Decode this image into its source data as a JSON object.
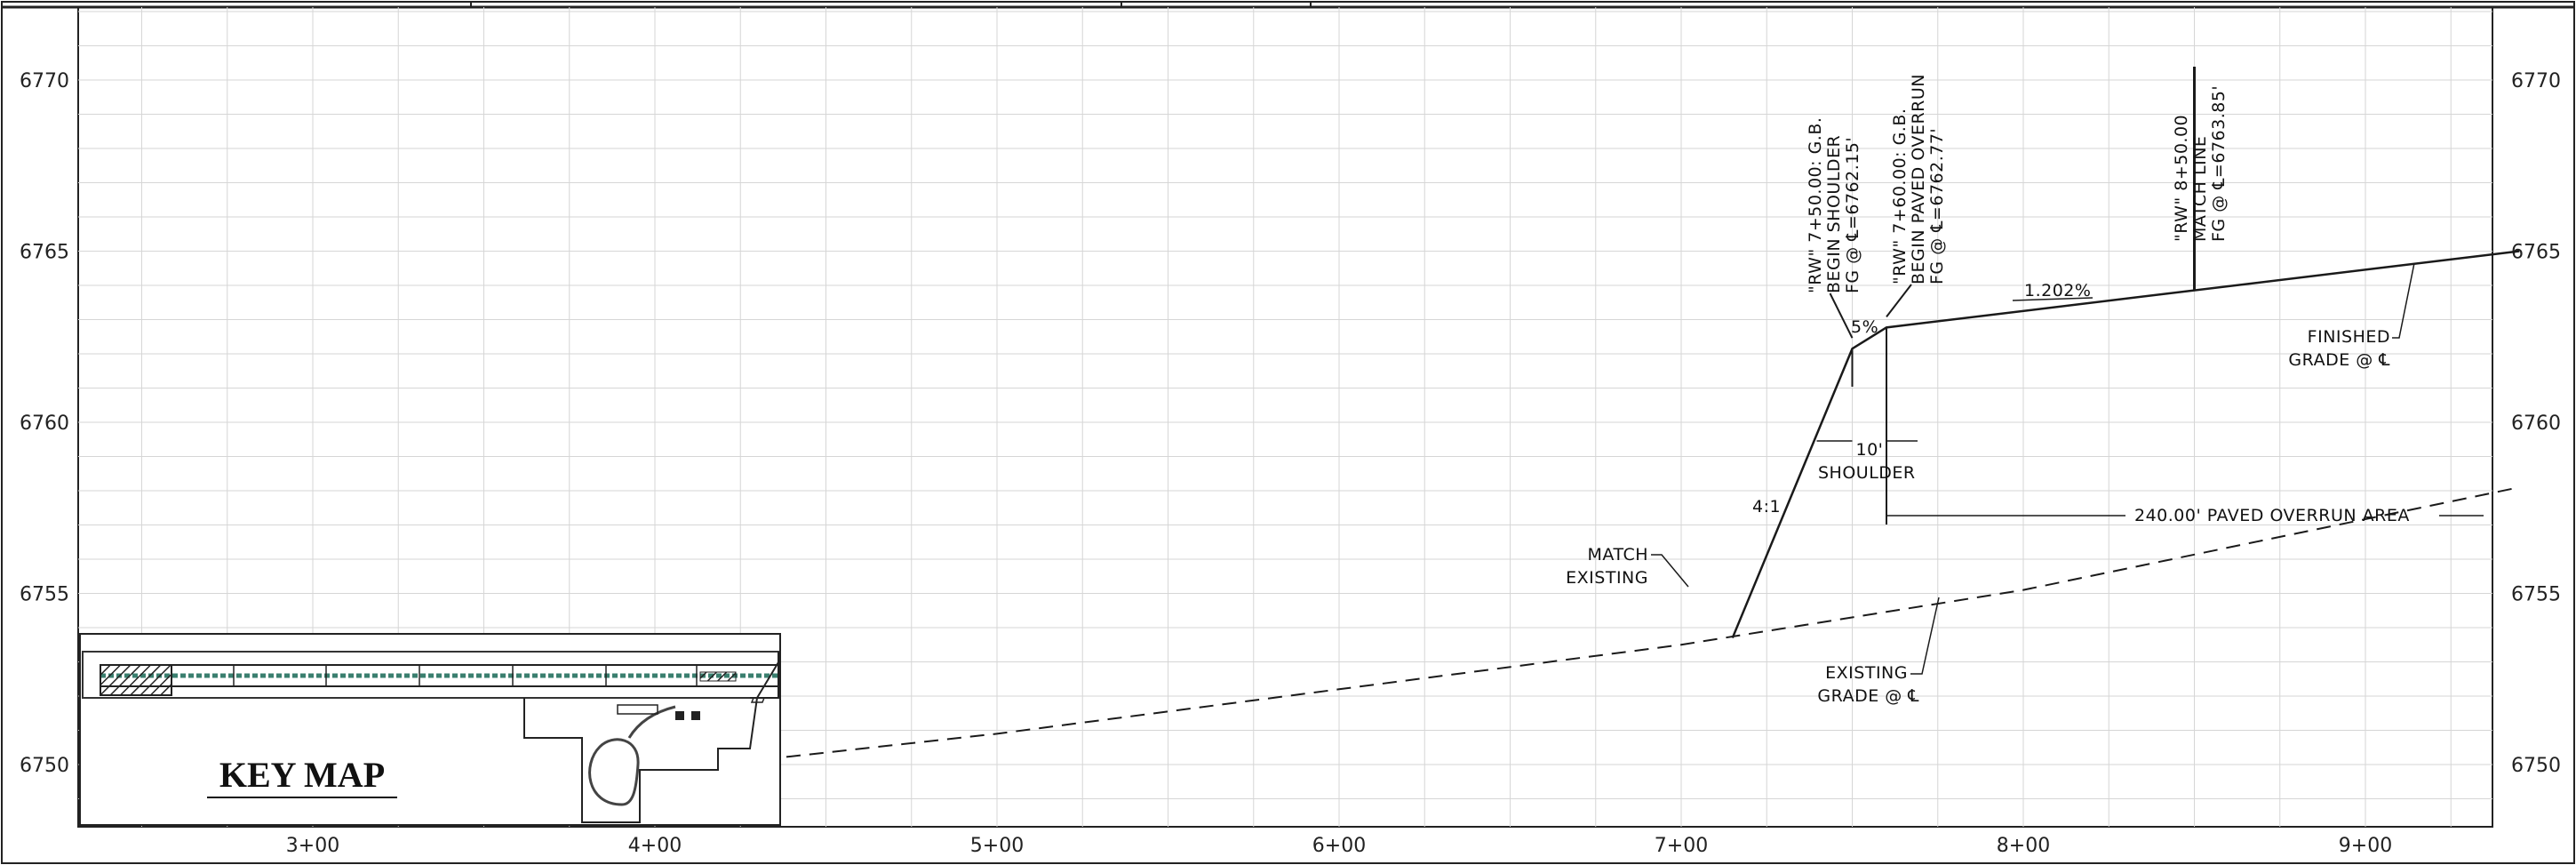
{
  "chart_data": {
    "type": "line",
    "y_ticks": [
      "6770",
      "6765",
      "6760",
      "6755",
      "6750"
    ],
    "y_tick_values": [
      6770,
      6765,
      6760,
      6755,
      6750
    ],
    "x_ticks": [
      "3+00",
      "4+00",
      "5+00",
      "6+00",
      "7+00",
      "8+00",
      "9+00"
    ],
    "x_tick_values": [
      300,
      400,
      500,
      600,
      700,
      800,
      900
    ],
    "xlim": [
      240,
      945
    ],
    "ylim": [
      6748,
      6772
    ],
    "grid": true,
    "series": [
      {
        "name": "FINISHED GRADE @ ℄",
        "style": "solid",
        "x": [
          715,
          750,
          760,
          945
        ],
        "y": [
          6753.7,
          6762.15,
          6762.77,
          6765.0
        ]
      },
      {
        "name": "EXISTING GRADE @ ℄",
        "style": "dashed",
        "x": [
          277,
          400,
          500,
          600,
          700,
          800,
          945
        ],
        "y": [
          6748.8,
          6749.8,
          6750.9,
          6752.2,
          6753.5,
          6755.1,
          6758.1
        ]
      }
    ],
    "annotations": {
      "begin_shoulder": [
        "\"RW\" 7+50.00: G.B.",
        "BEGIN SHOULDER",
        "FG @ ℄=6762.15'"
      ],
      "begin_overrun": [
        "\"RW\" 7+60.00: G.B.",
        "BEGIN PAVED OVERRUN",
        "FG @ ℄=6762.77'"
      ],
      "match_line": [
        "\"RW\" 8+50.00",
        "MATCH LINE",
        "FG @ ℄=6763.85'"
      ],
      "slope_pct": "1.202%",
      "shoulder_slope": "5%",
      "side_slope": "4:1",
      "shoulder_width": "10'",
      "shoulder_label": "SHOULDER",
      "overrun_area": "240.00' PAVED OVERRUN AREA",
      "finished_grade": [
        "FINISHED",
        "GRADE @ ℄"
      ],
      "existing_grade": [
        "EXISTING",
        "GRADE @ ℄"
      ],
      "match_existing": [
        "MATCH",
        "EXISTING"
      ]
    }
  },
  "key_map": {
    "title": "KEY MAP"
  }
}
